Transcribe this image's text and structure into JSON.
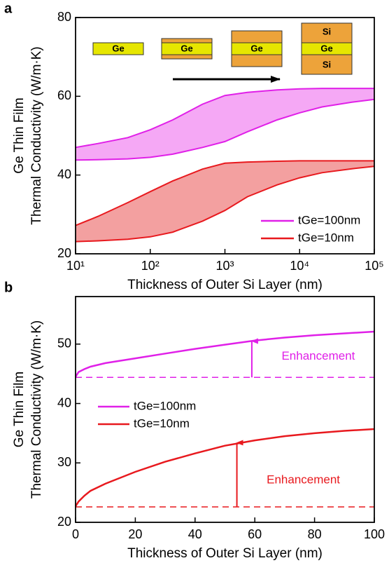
{
  "chart_data": [
    {
      "type": "area",
      "panel_label": "a",
      "xlabel": "Thickness of Outer Si Layer (nm)",
      "ylabel": [
        "Ge Thin Film",
        "Thermal Conductivity (W/m·K)"
      ],
      "xscale": "log",
      "xlim": [
        10,
        100000
      ],
      "xticks": [
        {
          "value": 10,
          "label": "10¹"
        },
        {
          "value": 100,
          "label": "10²"
        },
        {
          "value": 1000,
          "label": "10³"
        },
        {
          "value": 10000,
          "label": "10⁴"
        },
        {
          "value": 100000,
          "label": "10⁵"
        }
      ],
      "ylim": [
        20,
        80
      ],
      "yticks": [
        20,
        40,
        60,
        80
      ],
      "x": [
        10,
        20,
        50,
        100,
        200,
        500,
        1000,
        2000,
        5000,
        10000,
        20000,
        50000,
        100000
      ],
      "series": [
        {
          "name": "tGe=100nm",
          "color": "#e020e8",
          "fill": "#f5a8f5",
          "upper": [
            47,
            48,
            49.5,
            51.5,
            54,
            58,
            60.2,
            61,
            61.6,
            61.9,
            62,
            62,
            62
          ],
          "lower": [
            43.8,
            43.9,
            44.1,
            44.5,
            45.3,
            47,
            48.5,
            51,
            54,
            55.8,
            57.3,
            58.5,
            59.2
          ]
        },
        {
          "name": "tGe=10nm",
          "color": "#e8191e",
          "fill": "#f3a0a0",
          "upper": [
            27.2,
            29.5,
            33,
            35.8,
            38.5,
            41.5,
            43,
            43.3,
            43.5,
            43.6,
            43.6,
            43.6,
            43.6
          ],
          "lower": [
            23.1,
            23.3,
            23.7,
            24.3,
            25.5,
            28.3,
            31,
            34.5,
            37.5,
            39.3,
            40.6,
            41.6,
            42.2
          ]
        }
      ],
      "inset_labels": [
        "Ge",
        "Ge",
        "Ge",
        "Si",
        "Ge",
        "Si"
      ]
    },
    {
      "type": "line",
      "panel_label": "b",
      "xlabel": "Thickness of Outer Si Layer (nm)",
      "ylabel": [
        "Ge Thin Film",
        "Thermal Conductivity (W/m·K)"
      ],
      "xlim": [
        0,
        100
      ],
      "xticks": [
        0,
        20,
        40,
        60,
        80,
        100
      ],
      "ylim": [
        20,
        58
      ],
      "yticks": [
        20,
        30,
        40,
        50
      ],
      "x": [
        0,
        1,
        3,
        5,
        10,
        20,
        30,
        40,
        50,
        60,
        70,
        80,
        90,
        100
      ],
      "series": [
        {
          "name": "tGe=100nm",
          "color": "#e020e8",
          "baseline": 44.4,
          "values": [
            44.5,
            45.3,
            45.8,
            46.2,
            46.8,
            47.6,
            48.4,
            49.2,
            49.9,
            50.6,
            51.1,
            51.5,
            51.8,
            52.1
          ]
        },
        {
          "name": "tGe=10nm",
          "color": "#e8191e",
          "baseline": 22.6,
          "values": [
            22.7,
            23.5,
            24.5,
            25.3,
            26.5,
            28.5,
            30.2,
            31.6,
            32.9,
            33.8,
            34.5,
            35,
            35.4,
            35.7
          ]
        }
      ],
      "arrows": [
        {
          "x": 59,
          "from": 44.4,
          "to": 50.5,
          "color": "#e020e8",
          "text": "Enhancement"
        },
        {
          "x": 54,
          "from": 22.6,
          "to": 33.4,
          "color": "#e8191e",
          "text": "Enhancement"
        }
      ]
    }
  ]
}
